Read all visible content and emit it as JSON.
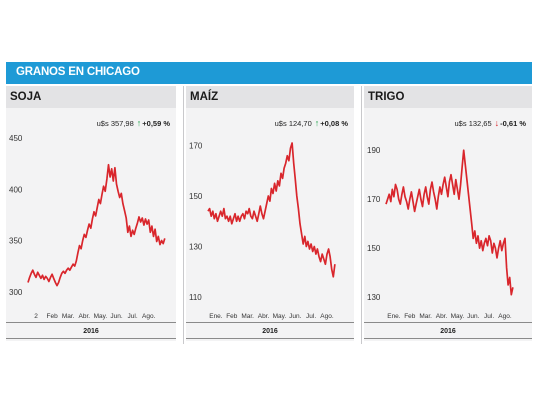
{
  "header": {
    "title": "GRANOS EN CHICAGO"
  },
  "colors": {
    "header_bg": "#1e9ad6",
    "line": "#d9262c",
    "up": "#1ea24a",
    "down": "#d9262c"
  },
  "panels": [
    {
      "name": "SOJA",
      "price": "u$s 357,98",
      "change": "+0,59 %",
      "direction": "up",
      "year": "2016"
    },
    {
      "name": "MAÍZ",
      "price": "u$s 124,70",
      "change": "+0,08 %",
      "direction": "up",
      "year": "2016"
    },
    {
      "name": "TRIGO",
      "price": "u$s 132,65",
      "change": "-0,61 %",
      "direction": "down",
      "year": "2016"
    }
  ],
  "chart_data": [
    {
      "type": "line",
      "title": "SOJA",
      "ylim": [
        290,
        450
      ],
      "yticks": [
        300,
        350,
        400,
        450
      ],
      "x_tick_labels": [
        "2",
        "Feb",
        "Mar.",
        "Abr.",
        "May.",
        "Jun.",
        "Jul.",
        "Ago."
      ],
      "xlim": [
        0,
        8.7
      ],
      "series": [
        {
          "values": [
            [
              0.0,
              309
            ],
            [
              0.1,
              314
            ],
            [
              0.2,
              318
            ],
            [
              0.3,
              321
            ],
            [
              0.4,
              317
            ],
            [
              0.5,
              314
            ],
            [
              0.6,
              319
            ],
            [
              0.7,
              316
            ],
            [
              0.8,
              313
            ],
            [
              0.9,
              316
            ],
            [
              1.0,
              312
            ],
            [
              1.1,
              315
            ],
            [
              1.2,
              313
            ],
            [
              1.3,
              310
            ],
            [
              1.4,
              314
            ],
            [
              1.5,
              317
            ],
            [
              1.6,
              313
            ],
            [
              1.7,
              309
            ],
            [
              1.8,
              306
            ],
            [
              1.9,
              309
            ],
            [
              2.0,
              314
            ],
            [
              2.1,
              318
            ],
            [
              2.2,
              320
            ],
            [
              2.3,
              318
            ],
            [
              2.4,
              321
            ],
            [
              2.5,
              323
            ],
            [
              2.6,
              321
            ],
            [
              2.7,
              324
            ],
            [
              2.8,
              327
            ],
            [
              2.9,
              325
            ],
            [
              3.0,
              330
            ],
            [
              3.1,
              338
            ],
            [
              3.2,
              345
            ],
            [
              3.3,
              342
            ],
            [
              3.4,
              350
            ],
            [
              3.5,
              356
            ],
            [
              3.6,
              353
            ],
            [
              3.7,
              360
            ],
            [
              3.8,
              366
            ],
            [
              3.9,
              362
            ],
            [
              4.0,
              371
            ],
            [
              4.1,
              378
            ],
            [
              4.2,
              374
            ],
            [
              4.3,
              382
            ],
            [
              4.4,
              390
            ],
            [
              4.5,
              386
            ],
            [
              4.6,
              395
            ],
            [
              4.7,
              403
            ],
            [
              4.8,
              398
            ],
            [
              4.9,
              410
            ],
            [
              5.0,
              424
            ],
            [
              5.1,
              412
            ],
            [
              5.2,
              420
            ],
            [
              5.3,
              408
            ],
            [
              5.4,
              421
            ],
            [
              5.5,
              405
            ],
            [
              5.6,
              398
            ],
            [
              5.7,
              392
            ],
            [
              5.8,
              396
            ],
            [
              5.9,
              386
            ],
            [
              6.0,
              379
            ],
            [
              6.1,
              372
            ],
            [
              6.2,
              358
            ],
            [
              6.3,
              364
            ],
            [
              6.4,
              354
            ],
            [
              6.5,
              360
            ],
            [
              6.6,
              356
            ],
            [
              6.7,
              362
            ],
            [
              6.8,
              367
            ],
            [
              6.9,
              373
            ],
            [
              7.0,
              368
            ],
            [
              7.1,
              372
            ],
            [
              7.2,
              365
            ],
            [
              7.3,
              371
            ],
            [
              7.4,
              366
            ],
            [
              7.5,
              370
            ],
            [
              7.6,
              358
            ],
            [
              7.7,
              364
            ],
            [
              7.8,
              354
            ],
            [
              7.9,
              361
            ],
            [
              8.0,
              349
            ],
            [
              8.1,
              354
            ],
            [
              8.2,
              346
            ],
            [
              8.3,
              350
            ],
            [
              8.4,
              347
            ],
            [
              8.5,
              352
            ]
          ]
        }
      ]
    },
    {
      "type": "line",
      "title": "MAÍZ",
      "ylim": [
        108,
        173
      ],
      "yticks": [
        110,
        130,
        150,
        170
      ],
      "x_tick_labels": [
        "Ene.",
        "Feb",
        "Mar.",
        "Abr.",
        "May.",
        "Jun.",
        "Jul.",
        "Ago."
      ],
      "xlim": [
        0,
        8.7
      ],
      "series": [
        {
          "values": [
            [
              0.0,
              144
            ],
            [
              0.1,
              145
            ],
            [
              0.2,
              142
            ],
            [
              0.3,
              144
            ],
            [
              0.4,
              141
            ],
            [
              0.5,
              143
            ],
            [
              0.6,
              140
            ],
            [
              0.7,
              142
            ],
            [
              0.8,
              144
            ],
            [
              0.9,
              142
            ],
            [
              1.0,
              145
            ],
            [
              1.1,
              141
            ],
            [
              1.2,
              142
            ],
            [
              1.3,
              140
            ],
            [
              1.4,
              142
            ],
            [
              1.5,
              139
            ],
            [
              1.6,
              141
            ],
            [
              1.7,
              143
            ],
            [
              1.8,
              140
            ],
            [
              1.9,
              142
            ],
            [
              2.0,
              140
            ],
            [
              2.1,
              142
            ],
            [
              2.2,
              143
            ],
            [
              2.3,
              141
            ],
            [
              2.4,
              144
            ],
            [
              2.5,
              143
            ],
            [
              2.6,
              145
            ],
            [
              2.7,
              142
            ],
            [
              2.8,
              141
            ],
            [
              2.9,
              144
            ],
            [
              3.0,
              142
            ],
            [
              3.1,
              140
            ],
            [
              3.2,
              143
            ],
            [
              3.3,
              146
            ],
            [
              3.4,
              143
            ],
            [
              3.5,
              141
            ],
            [
              3.6,
              144
            ],
            [
              3.7,
              147
            ],
            [
              3.8,
              150
            ],
            [
              3.9,
              148
            ],
            [
              4.0,
              153
            ],
            [
              4.1,
              151
            ],
            [
              4.2,
              155
            ],
            [
              4.3,
              152
            ],
            [
              4.4,
              156
            ],
            [
              4.5,
              154
            ],
            [
              4.6,
              159
            ],
            [
              4.7,
              157
            ],
            [
              4.8,
              161
            ],
            [
              4.9,
              163
            ],
            [
              5.0,
              166
            ],
            [
              5.1,
              164
            ],
            [
              5.2,
              169
            ],
            [
              5.3,
              171
            ],
            [
              5.4,
              163
            ],
            [
              5.5,
              157
            ],
            [
              5.6,
              150
            ],
            [
              5.7,
              145
            ],
            [
              5.8,
              139
            ],
            [
              5.9,
              135
            ],
            [
              6.0,
              131
            ],
            [
              6.1,
              134
            ],
            [
              6.2,
              130
            ],
            [
              6.3,
              132
            ],
            [
              6.4,
              129
            ],
            [
              6.5,
              131
            ],
            [
              6.6,
              128
            ],
            [
              6.7,
              130
            ],
            [
              6.8,
              127
            ],
            [
              6.9,
              129
            ],
            [
              7.0,
              126
            ],
            [
              7.1,
              124
            ],
            [
              7.2,
              127
            ],
            [
              7.3,
              125
            ],
            [
              7.4,
              123
            ],
            [
              7.5,
              127
            ],
            [
              7.6,
              129
            ],
            [
              7.7,
              126
            ],
            [
              7.8,
              121
            ],
            [
              7.9,
              118
            ],
            [
              8.0,
              123
            ]
          ]
        }
      ]
    },
    {
      "type": "line",
      "title": "TRIGO",
      "ylim": [
        128,
        195
      ],
      "yticks": [
        130,
        150,
        170,
        190
      ],
      "x_tick_labels": [
        "Ene.",
        "Feb",
        "Mar.",
        "Abr.",
        "May.",
        "Jun.",
        "Jul.",
        "Ago."
      ],
      "xlim": [
        0,
        8.7
      ],
      "series": [
        {
          "values": [
            [
              0.0,
              168
            ],
            [
              0.1,
              170
            ],
            [
              0.2,
              172
            ],
            [
              0.3,
              169
            ],
            [
              0.4,
              174
            ],
            [
              0.5,
              171
            ],
            [
              0.6,
              176
            ],
            [
              0.7,
              174
            ],
            [
              0.8,
              170
            ],
            [
              0.9,
              168
            ],
            [
              1.0,
              172
            ],
            [
              1.1,
              175
            ],
            [
              1.2,
              171
            ],
            [
              1.3,
              169
            ],
            [
              1.4,
              166
            ],
            [
              1.5,
              170
            ],
            [
              1.6,
              173
            ],
            [
              1.7,
              169
            ],
            [
              1.8,
              165
            ],
            [
              1.9,
              168
            ],
            [
              2.0,
              171
            ],
            [
              2.1,
              174
            ],
            [
              2.2,
              170
            ],
            [
              2.3,
              167
            ],
            [
              2.4,
              172
            ],
            [
              2.5,
              175
            ],
            [
              2.6,
              171
            ],
            [
              2.7,
              168
            ],
            [
              2.8,
              174
            ],
            [
              2.9,
              177
            ],
            [
              3.0,
              173
            ],
            [
              3.1,
              170
            ],
            [
              3.2,
              166
            ],
            [
              3.3,
              171
            ],
            [
              3.4,
              175
            ],
            [
              3.5,
              172
            ],
            [
              3.6,
              176
            ],
            [
              3.7,
              179
            ],
            [
              3.8,
              175
            ],
            [
              3.9,
              171
            ],
            [
              4.0,
              177
            ],
            [
              4.1,
              180
            ],
            [
              4.2,
              176
            ],
            [
              4.3,
              172
            ],
            [
              4.4,
              178
            ],
            [
              4.5,
              174
            ],
            [
              4.6,
              170
            ],
            [
              4.7,
              176
            ],
            [
              4.8,
              183
            ],
            [
              4.9,
              190
            ],
            [
              5.0,
              184
            ],
            [
              5.1,
              178
            ],
            [
              5.2,
              172
            ],
            [
              5.3,
              166
            ],
            [
              5.4,
              160
            ],
            [
              5.5,
              154
            ],
            [
              5.6,
              157
            ],
            [
              5.7,
              152
            ],
            [
              5.8,
              155
            ],
            [
              5.9,
              150
            ],
            [
              6.0,
              153
            ],
            [
              6.1,
              149
            ],
            [
              6.2,
              152
            ],
            [
              6.3,
              154
            ],
            [
              6.4,
              151
            ],
            [
              6.5,
              155
            ],
            [
              6.6,
              153
            ],
            [
              6.7,
              148
            ],
            [
              6.8,
              152
            ],
            [
              6.9,
              150
            ],
            [
              7.0,
              146
            ],
            [
              7.1,
              150
            ],
            [
              7.2,
              153
            ],
            [
              7.3,
              149
            ],
            [
              7.4,
              152
            ],
            [
              7.5,
              154
            ],
            [
              7.6,
              142
            ],
            [
              7.7,
              135
            ],
            [
              7.8,
              138
            ],
            [
              7.9,
              131
            ],
            [
              8.0,
              134
            ]
          ]
        }
      ]
    }
  ]
}
